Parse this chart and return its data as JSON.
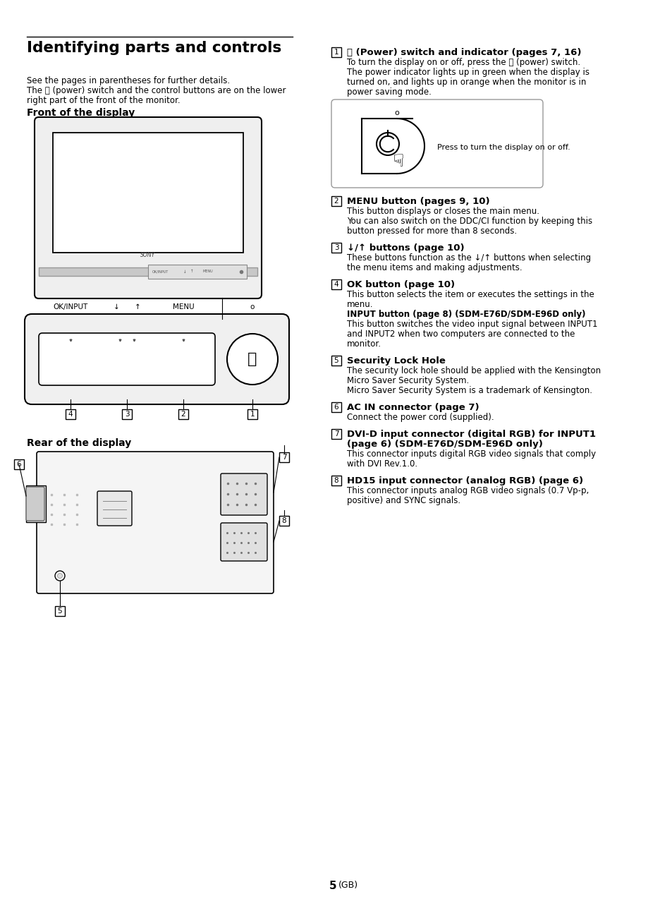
{
  "page_bg": "#ffffff",
  "title_line": "Identifying parts and controls",
  "intro_lines": [
    "See the pages in parentheses for further details.",
    "The ⏻ (power) switch and the control buttons are on the lower",
    "right part of the front of the monitor."
  ],
  "front_label": "Front of the display",
  "rear_label": "Rear of the display",
  "page_number": "5",
  "page_suffix": " (GB)"
}
